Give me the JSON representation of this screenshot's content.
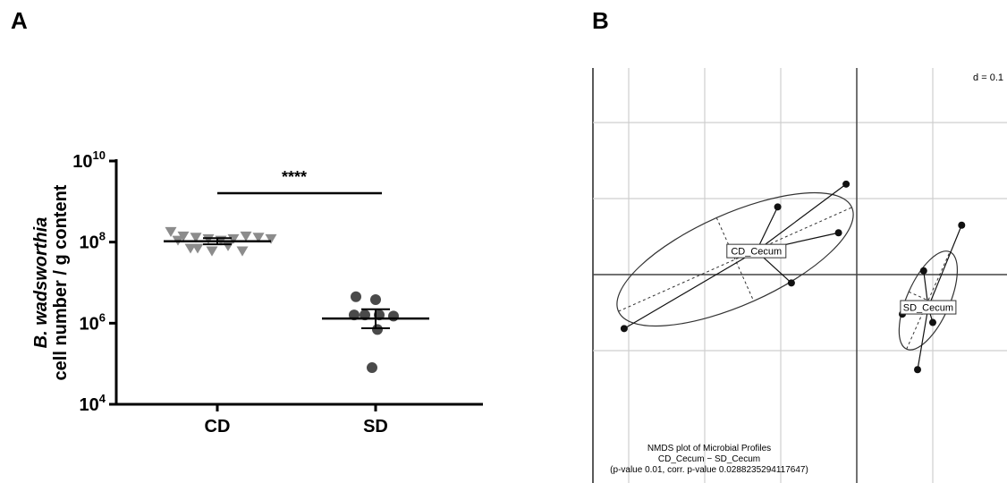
{
  "panels": {
    "a_label": "A",
    "b_label": "B"
  },
  "chart_data": [
    {
      "type": "scatter",
      "ylabel_italic": "B. wadsworthia",
      "ylabel_rest": "cell number / g content",
      "yscale": "log",
      "ylim": [
        10000,
        10000000000
      ],
      "ytick_labels": [
        {
          "base": "10",
          "exp": "4",
          "value": 10000
        },
        {
          "base": "10",
          "exp": "6",
          "value": 1000000
        },
        {
          "base": "10",
          "exp": "8",
          "value": 100000000
        },
        {
          "base": "10",
          "exp": "10",
          "value": 10000000000
        }
      ],
      "categories": [
        "CD",
        "SD"
      ],
      "significance": "****",
      "series": [
        {
          "category": "CD",
          "marker": "triangle-down",
          "color": "#8c8c8c",
          "values": [
            180000000,
            140000000,
            130000000,
            120000000,
            110000000,
            120000000,
            140000000,
            130000000,
            120000000,
            110000000,
            70000000,
            60000000,
            80000000,
            60000000,
            70000000
          ],
          "center": 105000000,
          "error": [
            88000000,
            125000000
          ]
        },
        {
          "category": "SD",
          "marker": "circle",
          "color": "#4a4a4a",
          "values": [
            4500000,
            3800000,
            1600000,
            1600000,
            1600000,
            1500000,
            700000,
            80000
          ],
          "center": 1300000,
          "error": [
            750000,
            2200000
          ]
        }
      ]
    },
    {
      "type": "scatter",
      "subtype": "NMDS ordination",
      "scale_note": "d = 0.1",
      "groups": [
        {
          "name": "CD_Cecum",
          "center": [
            -0.66,
            0.155
          ],
          "points": [
            [
              -1.53,
              -0.355
            ],
            [
              -0.52,
              0.445
            ],
            [
              -0.07,
              0.595
            ],
            [
              -0.12,
              0.275
            ],
            [
              -0.43,
              -0.055
            ]
          ],
          "ellipse": {
            "cx": -0.8,
            "cy": 0.1,
            "rx": 0.84,
            "ry": 0.3,
            "angle_deg": -24
          }
        },
        {
          "name": "SD_Cecum",
          "center": [
            0.47,
            -0.215
          ],
          "points": [
            [
              0.69,
              0.325
            ],
            [
              0.44,
              0.025
            ],
            [
              0.3,
              -0.26
            ],
            [
              0.5,
              -0.315
            ],
            [
              0.4,
              -0.625
            ]
          ],
          "ellipse": {
            "cx": 0.47,
            "cy": -0.17,
            "rx": 0.35,
            "ry": 0.14,
            "angle_deg": -66
          }
        }
      ],
      "caption": {
        "line1": "NMDS plot of Microbial Profiles",
        "line2": "CD_Cecum − SD_Cecum",
        "line3": "(p-value 0.01, corr. p-value 0.0288235294117647)"
      }
    }
  ]
}
